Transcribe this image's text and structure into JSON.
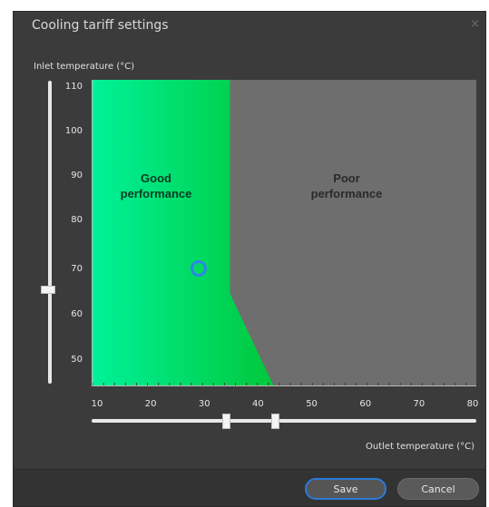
{
  "dialog": {
    "title": "Cooling tariff settings",
    "close_glyph": "×"
  },
  "axes": {
    "inlet_label": "Inlet temperature (°C)",
    "outlet_label": "Outlet temperature (°C)",
    "y_ticks": [
      "110",
      "100",
      "90",
      "80",
      "70",
      "60",
      "50"
    ],
    "x_ticks": [
      "10",
      "20",
      "30",
      "40",
      "50",
      "60",
      "70",
      "80"
    ]
  },
  "chart_data": {
    "type": "area",
    "xlim": [
      10,
      80
    ],
    "ylim": [
      45,
      111
    ],
    "regions": [
      {
        "name": "Good performance",
        "color": "#00d462",
        "boundary": [
          [
            35,
            111
          ],
          [
            35,
            65
          ],
          [
            43,
            45
          ]
        ]
      },
      {
        "name": "Poor performance",
        "color": "#6e6e6e"
      }
    ],
    "labels": {
      "good_line1": "Good",
      "good_line2": "performance",
      "poor_line1": "Poor",
      "poor_line2": "performance"
    },
    "marker": {
      "x": 30,
      "y": 70,
      "color": "#2f86e8"
    }
  },
  "sliders": {
    "inlet_value": 65,
    "outlet_values": [
      35,
      43
    ]
  },
  "buttons": {
    "save_label": "Save",
    "cancel_label": "Cancel"
  },
  "colors": {
    "dialog_bg": "#3b3b3b",
    "accent": "#2b7bd6"
  }
}
